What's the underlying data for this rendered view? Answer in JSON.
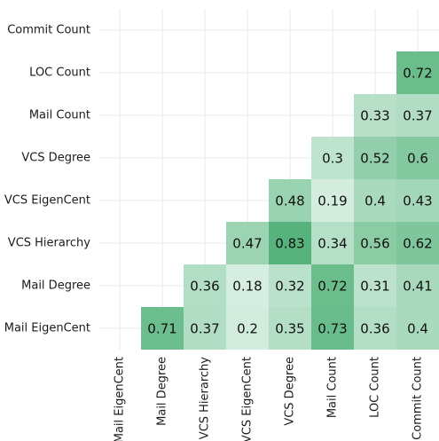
{
  "chart_data": {
    "type": "heatmap",
    "x_categories": [
      "Mail EigenCent",
      "Mail Degree",
      "VCS Hierarchy",
      "VCS EigenCent",
      "VCS Degree",
      "Mail Count",
      "LOC Count",
      "Commit Count"
    ],
    "y_categories": [
      "Commit Count",
      "LOC Count",
      "Mail Count",
      "VCS Degree",
      "VCS EigenCent",
      "VCS Hierarchy",
      "Mail Degree",
      "Mail EigenCent"
    ],
    "values": [
      [
        null,
        null,
        null,
        null,
        null,
        null,
        null,
        null
      ],
      [
        null,
        null,
        null,
        null,
        null,
        null,
        null,
        0.72
      ],
      [
        null,
        null,
        null,
        null,
        null,
        null,
        0.33,
        0.37
      ],
      [
        null,
        null,
        null,
        null,
        null,
        0.3,
        0.52,
        0.6
      ],
      [
        null,
        null,
        null,
        null,
        0.48,
        0.19,
        0.4,
        0.43
      ],
      [
        null,
        null,
        null,
        0.47,
        0.83,
        0.34,
        0.56,
        0.62
      ],
      [
        null,
        null,
        0.36,
        0.18,
        0.32,
        0.72,
        0.31,
        0.41
      ],
      [
        null,
        0.71,
        0.37,
        0.2,
        0.35,
        0.73,
        0.36,
        0.4
      ]
    ],
    "colorscale": {
      "low": "#d6eee1",
      "high": "#55b37b"
    },
    "grid": true
  }
}
